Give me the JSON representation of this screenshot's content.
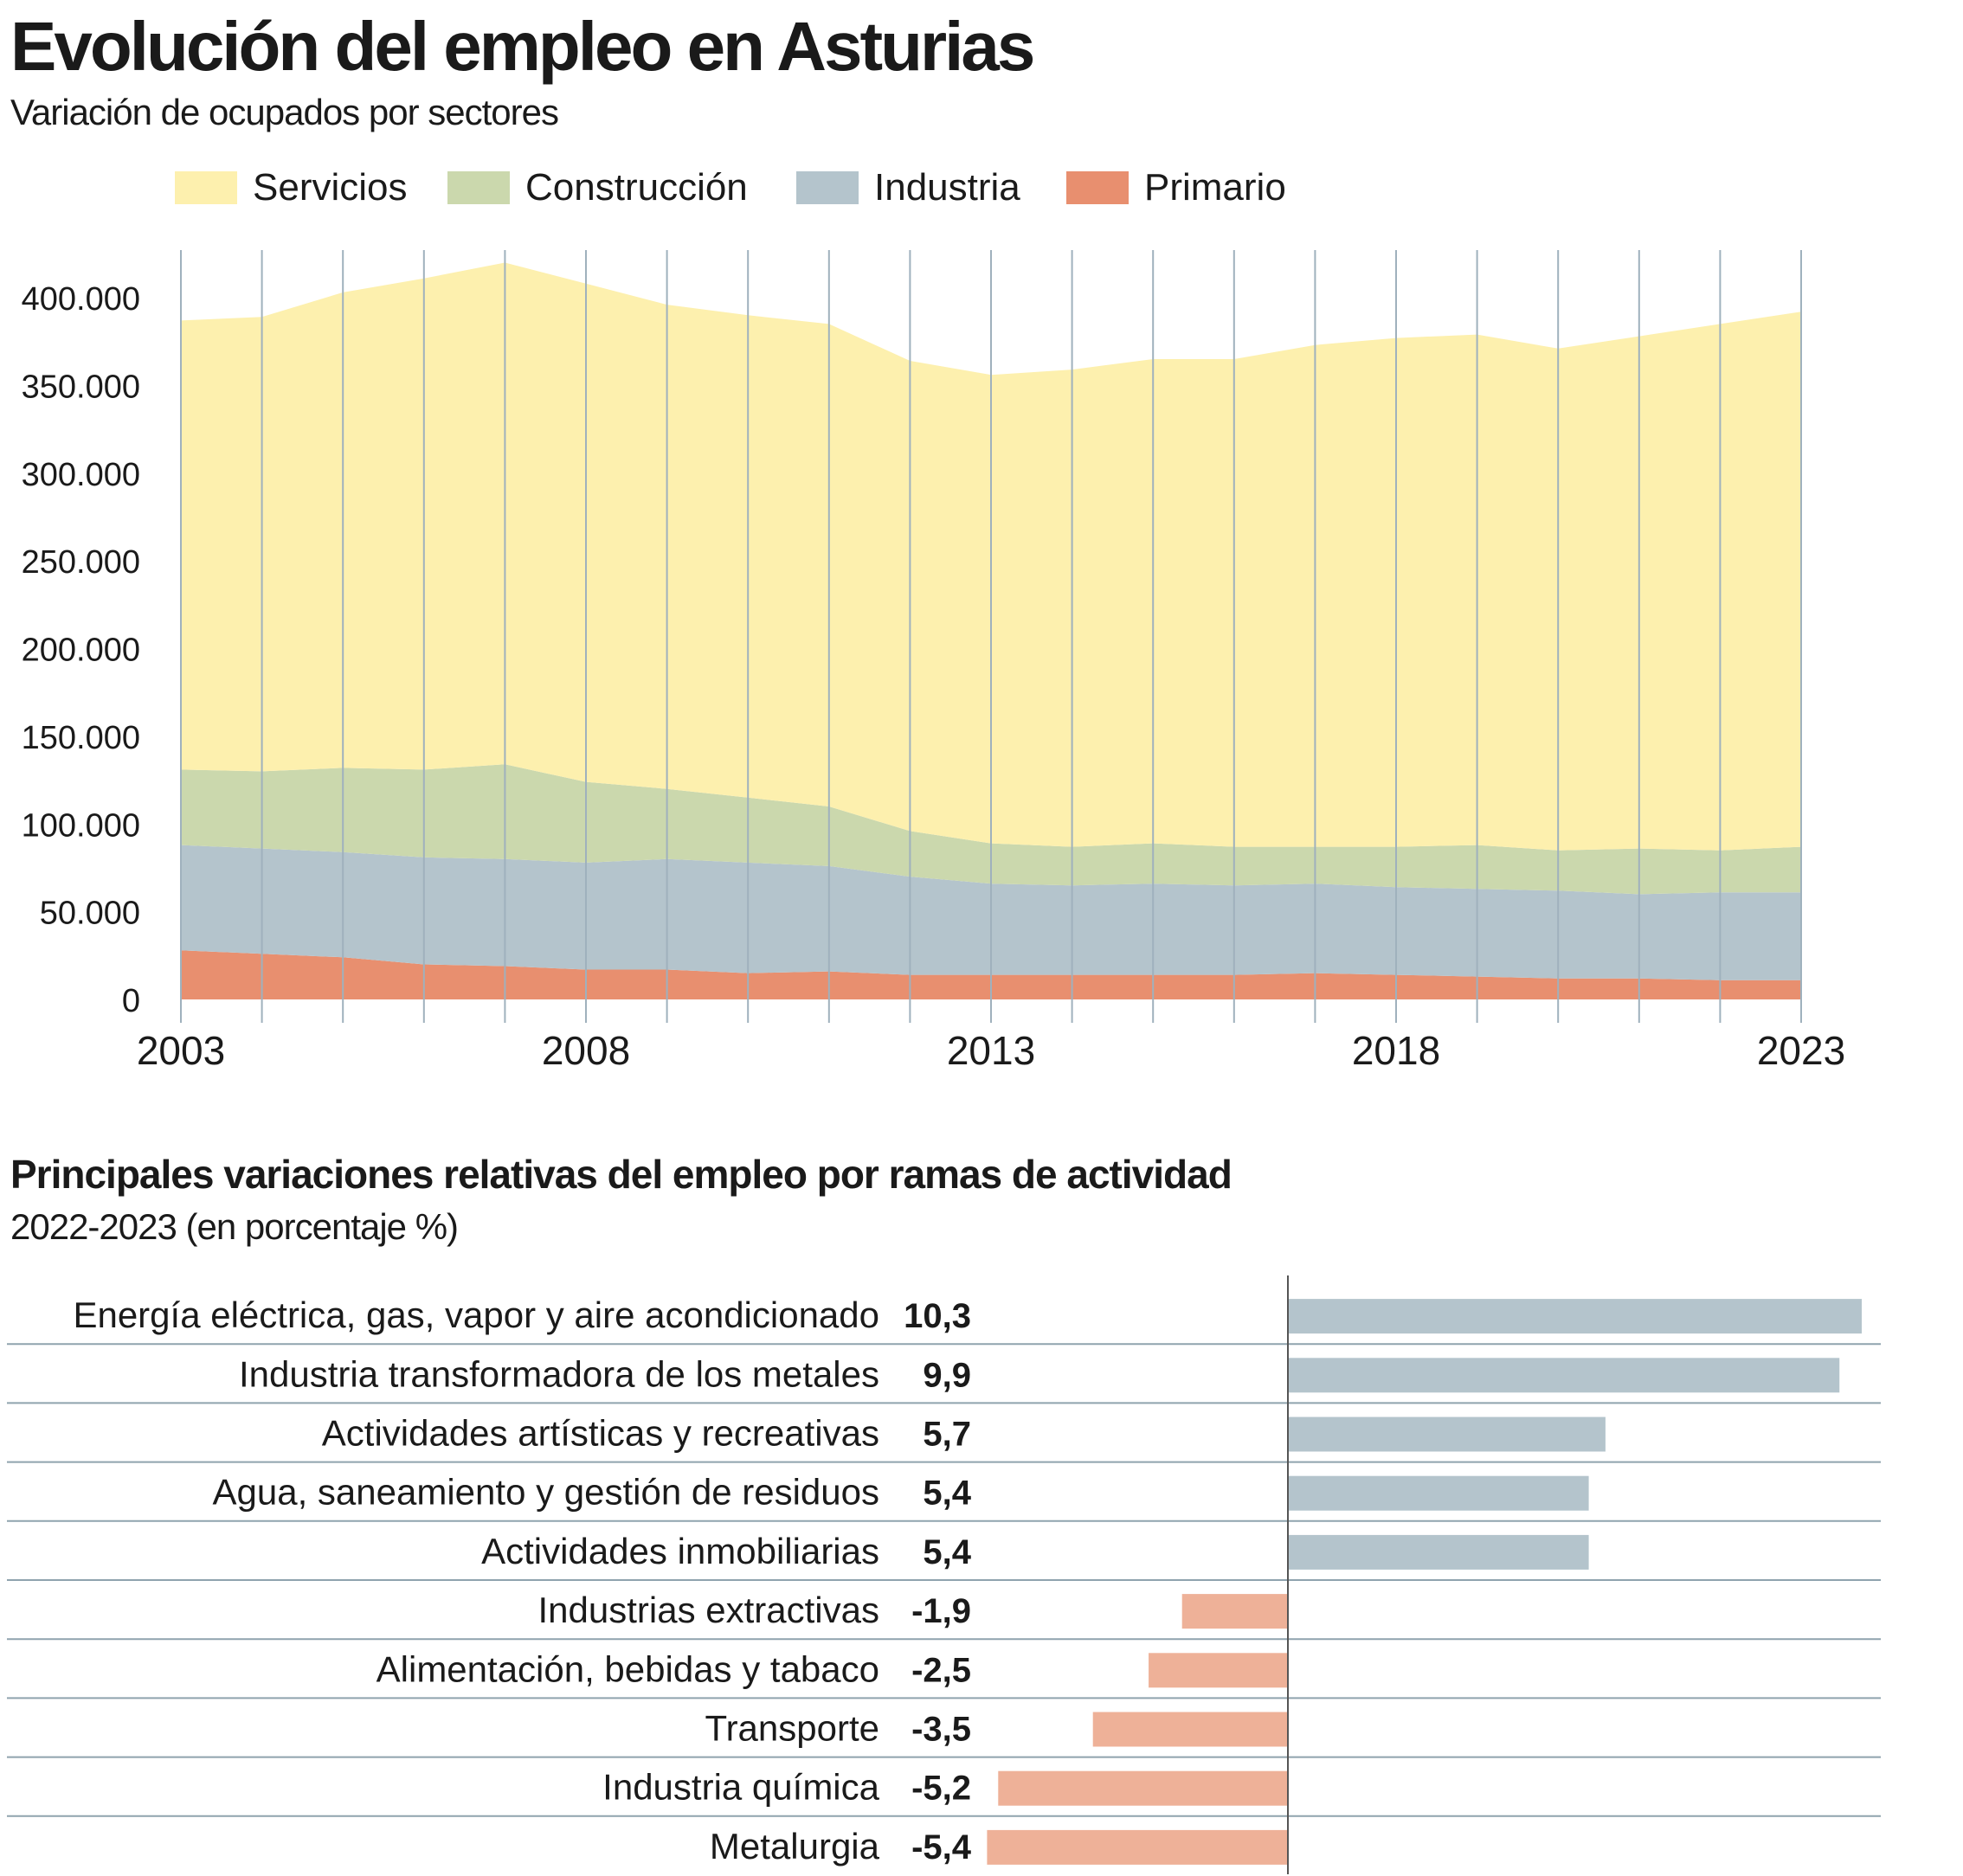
{
  "header": {
    "title": "Evolución del empleo en Asturias",
    "subtitle": "Variación de ocupados por sectores"
  },
  "legend": [
    {
      "label": "Servicios",
      "color": "#fdf0ae"
    },
    {
      "label": "Construcción",
      "color": "#cbd8ad"
    },
    {
      "label": "Industria",
      "color": "#b4c4cc"
    },
    {
      "label": "Primario",
      "color": "#e88f6f"
    }
  ],
  "chart_data": [
    {
      "type": "area",
      "stacked": true,
      "title": "Variación de ocupados por sectores",
      "x": [
        2003,
        2004,
        2005,
        2006,
        2007,
        2008,
        2009,
        2010,
        2011,
        2012,
        2013,
        2014,
        2015,
        2016,
        2017,
        2018,
        2019,
        2020,
        2021,
        2022,
        2023
      ],
      "x_tick_labels": [
        "2003",
        "2008",
        "2013",
        "2018",
        "2023"
      ],
      "y_tick_labels": [
        "0",
        "50.000",
        "100.000",
        "150.000",
        "200.000",
        "250.000",
        "300.000",
        "350.000",
        "400.000"
      ],
      "ylim": [
        0,
        420000
      ],
      "grid": "vertical",
      "legend_position": "top",
      "series": [
        {
          "name": "Primario",
          "values": [
            28000,
            26000,
            24000,
            20000,
            19000,
            17000,
            17000,
            15000,
            16000,
            14000,
            14000,
            14000,
            14000,
            14000,
            15000,
            14000,
            13000,
            12000,
            12000,
            11000,
            11000
          ]
        },
        {
          "name": "Industria",
          "values": [
            60000,
            60000,
            60000,
            61000,
            61000,
            61000,
            63000,
            63000,
            60000,
            56000,
            52000,
            51000,
            52000,
            51000,
            51000,
            50000,
            50000,
            50000,
            48000,
            50000,
            50000
          ]
        },
        {
          "name": "Construcción",
          "values": [
            43000,
            44000,
            48000,
            50000,
            54000,
            46000,
            40000,
            37000,
            34000,
            26000,
            23000,
            22000,
            23000,
            22000,
            21000,
            23000,
            25000,
            23000,
            26000,
            24000,
            26000
          ]
        },
        {
          "name": "Servicios",
          "values": [
            256000,
            259000,
            271000,
            280000,
            286000,
            284000,
            276000,
            275000,
            275000,
            268000,
            267000,
            272000,
            276000,
            278000,
            286000,
            290000,
            291000,
            286000,
            292000,
            300000,
            305000
          ]
        }
      ]
    },
    {
      "type": "bar",
      "orientation": "horizontal",
      "title": "Principales variaciones relativas del empleo por ramas de actividad",
      "subtitle": "2022-2023 (en porcentaje %)",
      "categories": [
        "Energía eléctrica, gas, vapor y aire acondicionado",
        "Industria transformadora de los metales",
        "Actividades artísticas y recreativas",
        "Agua, saneamiento y gestión de residuos",
        "Actividades inmobiliarias",
        "Industrias extractivas",
        "Alimentación, bebidas y tabaco",
        "Transporte",
        "Industria química",
        "Metalurgia"
      ],
      "values": [
        10.3,
        9.9,
        5.7,
        5.4,
        5.4,
        -1.9,
        -2.5,
        -3.5,
        -5.2,
        -5.4
      ],
      "value_labels": [
        "10,3",
        "9,9",
        "5,7",
        "5,4",
        "5,4",
        "-1,9",
        "-2,5",
        "-3,5",
        "-5,2",
        "-5,4"
      ],
      "positive_color": "#b4c4cc",
      "negative_color": "#eeb198"
    }
  ],
  "bars": {
    "title": "Principales variaciones relativas del empleo por ramas de actividad",
    "subtitle": "2022-2023 (en porcentaje %)"
  },
  "colors": {
    "grid": "#9fb1bd",
    "divider": "#8fa3ae",
    "text": "#1a1a1a"
  }
}
